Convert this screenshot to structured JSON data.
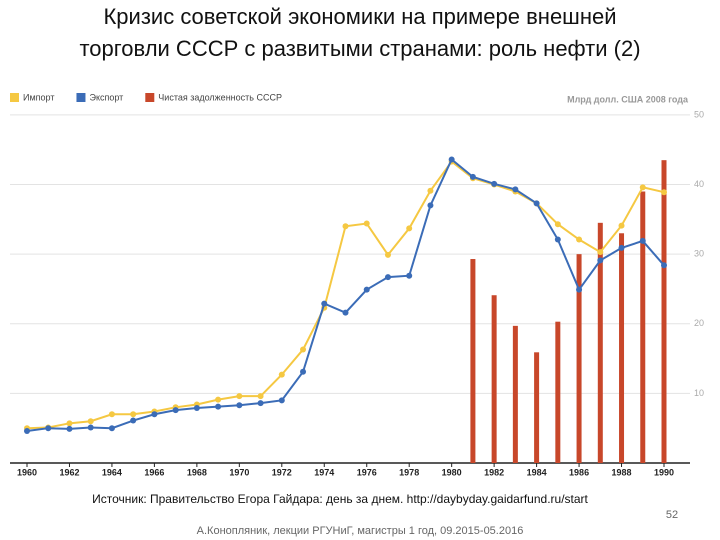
{
  "chart_data": {
    "type": "combo",
    "title": "Кризис советской экономики на примере внешней",
    "subtitle": "торговли СССР с развитыми странами: роль нефти (2)",
    "unit_label": "Млрд долл. США 2008 года",
    "x": [
      1960,
      1961,
      1962,
      1963,
      1964,
      1965,
      1966,
      1967,
      1968,
      1969,
      1970,
      1971,
      1972,
      1973,
      1974,
      1975,
      1976,
      1977,
      1978,
      1979,
      1980,
      1981,
      1982,
      1983,
      1984,
      1985,
      1986,
      1987,
      1988,
      1989,
      1990
    ],
    "xlim": [
      1960,
      1990
    ],
    "xticks": [
      1960,
      1962,
      1964,
      1966,
      1968,
      1970,
      1972,
      1974,
      1976,
      1978,
      1980,
      1982,
      1984,
      1986,
      1988,
      1990
    ],
    "ylim": [
      0,
      52
    ],
    "yticks": [
      10,
      20,
      30,
      40,
      50
    ],
    "grid": true,
    "series": [
      {
        "name": "Импорт",
        "type": "line",
        "color": "#f5c842",
        "values": [
          5.0,
          5.1,
          5.7,
          6.0,
          7.0,
          7.0,
          7.4,
          8.0,
          8.4,
          9.1,
          9.6,
          9.6,
          12.7,
          16.3,
          22.3,
          34.0,
          34.4,
          29.9,
          33.7,
          39.1,
          43.3,
          40.9,
          40.0,
          39.0,
          37.3,
          34.3,
          32.1,
          30.3,
          34.1,
          39.6,
          38.9
        ]
      },
      {
        "name": "Экспорт",
        "type": "line",
        "color": "#3b6cb7",
        "values": [
          4.6,
          5.0,
          4.9,
          5.1,
          5.0,
          6.1,
          7.0,
          7.6,
          7.9,
          8.1,
          8.3,
          8.6,
          9.0,
          13.1,
          22.9,
          21.6,
          24.9,
          26.7,
          26.9,
          37.0,
          43.6,
          41.1,
          40.1,
          39.3,
          37.3,
          32.1,
          24.9,
          29.1,
          30.9,
          31.9,
          28.4
        ]
      },
      {
        "name": "Чистая задолженность СССР",
        "type": "bar",
        "color": "#c8472a",
        "values": [
          null,
          null,
          null,
          null,
          null,
          null,
          null,
          null,
          null,
          null,
          null,
          null,
          null,
          null,
          null,
          null,
          null,
          null,
          null,
          null,
          null,
          29.3,
          24.1,
          19.7,
          15.9,
          20.3,
          30.0,
          34.5,
          33.0,
          39.0,
          43.5
        ]
      }
    ],
    "source": "Источник: Правительство Егора Гайдара: день за днем. http://daybyday.gaidarfund.ru/start",
    "page_number": "52",
    "footer": "А.Конопляник, лекции РГУНиГ, магистры 1 год, 09.2015-05.2016"
  }
}
